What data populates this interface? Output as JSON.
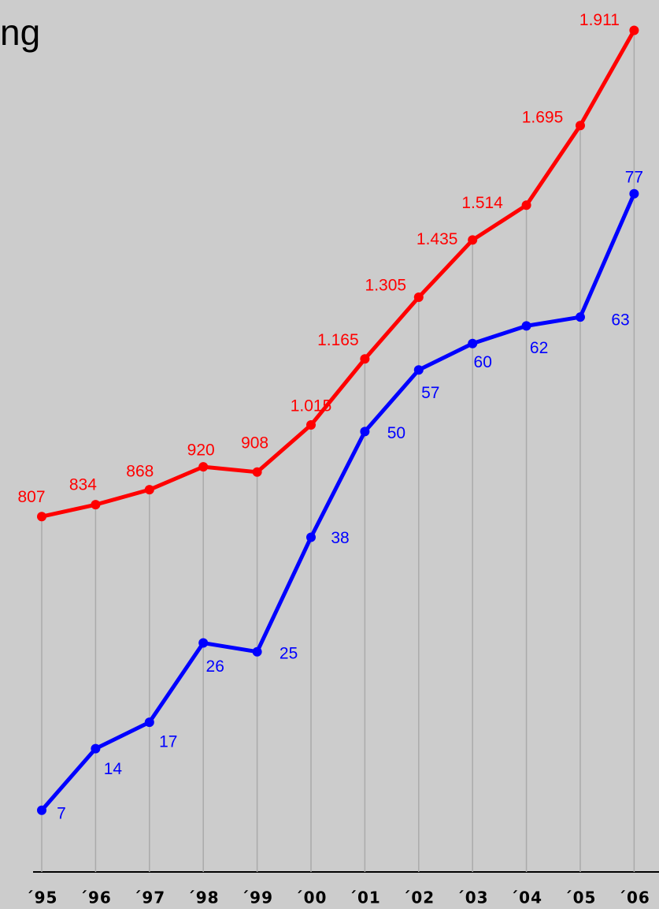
{
  "chart_data": {
    "type": "line",
    "title": "ng",
    "categories": [
      "´95",
      "´96",
      "´97",
      "´98",
      "´99",
      "´00",
      "´01",
      "´02",
      "´03",
      "´04",
      "´05",
      "´06"
    ],
    "series": [
      {
        "color": "#ff0000",
        "values": [
          807,
          834,
          868,
          920,
          908,
          1015,
          1165,
          1305,
          1435,
          1514,
          1695,
          1911
        ],
        "value_labels": [
          "807",
          "834",
          "868",
          "920",
          "908",
          "1.015",
          "1.165",
          "1.305",
          "1.435",
          "1.514",
          "1.695",
          "1.911"
        ]
      },
      {
        "color": "#0000ff",
        "axis": "y2",
        "values": [
          7,
          14,
          17,
          26,
          25,
          38,
          50,
          57,
          60,
          62,
          63,
          77
        ]
      }
    ],
    "ylim": [
      0,
      1980
    ],
    "y2lim": [
      0,
      99
    ]
  }
}
